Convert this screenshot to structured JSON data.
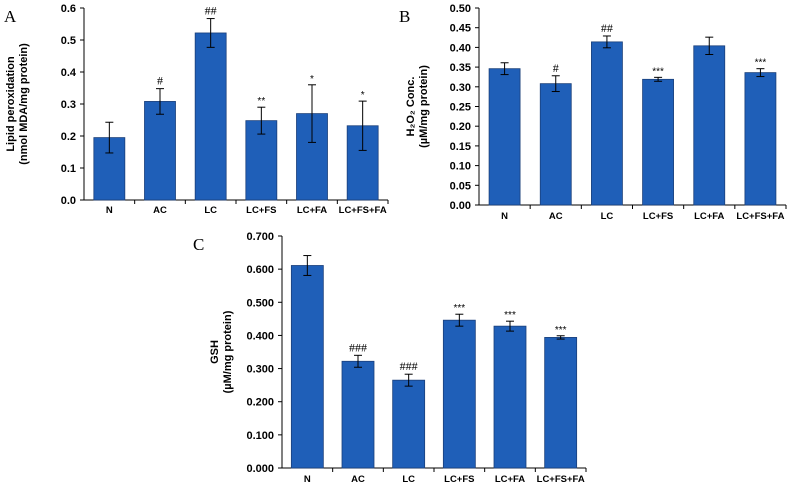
{
  "chart_data": [
    {
      "panel": "A",
      "type": "bar",
      "title": "",
      "ylabel_lines": [
        "Lipid peroxidation",
        "(nmol MDA/mg protein)"
      ],
      "xlabel": "",
      "categories": [
        "N",
        "AC",
        "LC",
        "LC+FS",
        "LC+FA",
        "LC+FS+FA"
      ],
      "values": [
        0.195,
        0.308,
        0.522,
        0.248,
        0.27,
        0.232
      ],
      "errors": [
        0.048,
        0.04,
        0.045,
        0.042,
        0.09,
        0.077
      ],
      "significance": [
        "",
        "#",
        "##",
        "**",
        "*",
        "*"
      ],
      "ylim": [
        0,
        0.6
      ],
      "yticks": [
        "0.0",
        "0.1",
        "0.2",
        "0.3",
        "0.4",
        "0.5",
        "0.6"
      ]
    },
    {
      "panel": "B",
      "type": "bar",
      "title": "",
      "ylabel_lines": [
        "H₂O₂ Conc.",
        "(µM/mg protein)"
      ],
      "xlabel": "",
      "categories": [
        "N",
        "AC",
        "LC",
        "LC+FS",
        "LC+FA",
        "LC+FS+FA"
      ],
      "values": [
        0.346,
        0.308,
        0.414,
        0.319,
        0.404,
        0.336
      ],
      "errors": [
        0.015,
        0.02,
        0.015,
        0.005,
        0.022,
        0.01
      ],
      "significance": [
        "",
        "#",
        "##",
        "***",
        "",
        "***"
      ],
      "ylim": [
        0,
        0.5
      ],
      "yticks": [
        "0.00",
        "0.05",
        "0.10",
        "0.15",
        "0.20",
        "0.25",
        "0.30",
        "0.35",
        "0.40",
        "0.45",
        "0.50"
      ]
    },
    {
      "panel": "C",
      "type": "bar",
      "title": "",
      "ylabel_lines": [
        "GSH",
        "(µM/mg protein)"
      ],
      "xlabel": "",
      "categories": [
        "N",
        "AC",
        "LC",
        "LC+FS",
        "LC+FA",
        "LC+FS+FA"
      ],
      "values": [
        0.611,
        0.322,
        0.265,
        0.446,
        0.428,
        0.394
      ],
      "errors": [
        0.03,
        0.018,
        0.018,
        0.018,
        0.015,
        0.005
      ],
      "significance": [
        "",
        "###",
        "###",
        "***",
        "***",
        "***"
      ],
      "ylim": [
        0,
        0.7
      ],
      "yticks": [
        "0.000",
        "0.100",
        "0.200",
        "0.300",
        "0.400",
        "0.500",
        "0.600",
        "0.700"
      ]
    }
  ],
  "colors": {
    "bar": "#1f5fb8",
    "bar_edge": "#1a3f7a",
    "axis": "#000000"
  }
}
